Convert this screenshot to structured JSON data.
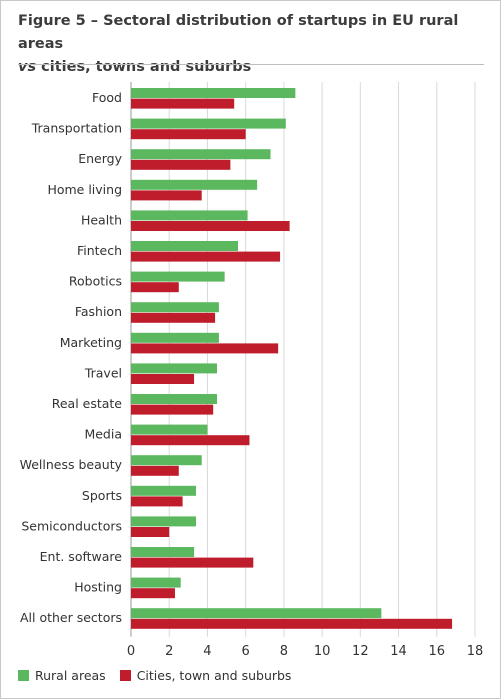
{
  "title": {
    "figure_label": "Figure 5",
    "dash": " – ",
    "line1_rest": "Sectoral distribution of startups in EU rural areas",
    "line2_italic": "vs",
    "line2_rest": " cities, towns and suburbs"
  },
  "colors": {
    "rural": "#5cb85f",
    "cities": "#bf1d2c"
  },
  "chart_data": {
    "type": "bar",
    "orientation": "horizontal",
    "categories": [
      "Food",
      "Transportation",
      "Energy",
      "Home living",
      "Health",
      "Fintech",
      "Robotics",
      "Fashion",
      "Marketing",
      "Travel",
      "Real estate",
      "Media",
      "Wellness beauty",
      "Sports",
      "Semiconductors",
      "Ent. software",
      "Hosting",
      "All other sectors"
    ],
    "series": [
      {
        "name": "Rural areas",
        "values": [
          8.6,
          8.1,
          7.3,
          6.6,
          6.1,
          5.6,
          4.9,
          4.6,
          4.6,
          4.5,
          4.5,
          4.0,
          3.7,
          3.4,
          3.4,
          3.3,
          2.6,
          13.1
        ]
      },
      {
        "name": "Cities, town and suburbs",
        "values": [
          5.4,
          6.0,
          5.2,
          3.7,
          8.3,
          7.8,
          2.5,
          4.4,
          7.7,
          3.3,
          4.3,
          6.2,
          2.5,
          2.7,
          2.0,
          6.4,
          2.3,
          16.8
        ]
      }
    ],
    "xlim": [
      0,
      18
    ],
    "xticks": [
      0,
      2,
      4,
      6,
      8,
      10,
      12,
      14,
      16,
      18
    ],
    "grid": true,
    "legend_position": "bottom-left"
  },
  "legend": {
    "rural_label": "Rural areas",
    "cities_label": "Cities, town and suburbs"
  }
}
